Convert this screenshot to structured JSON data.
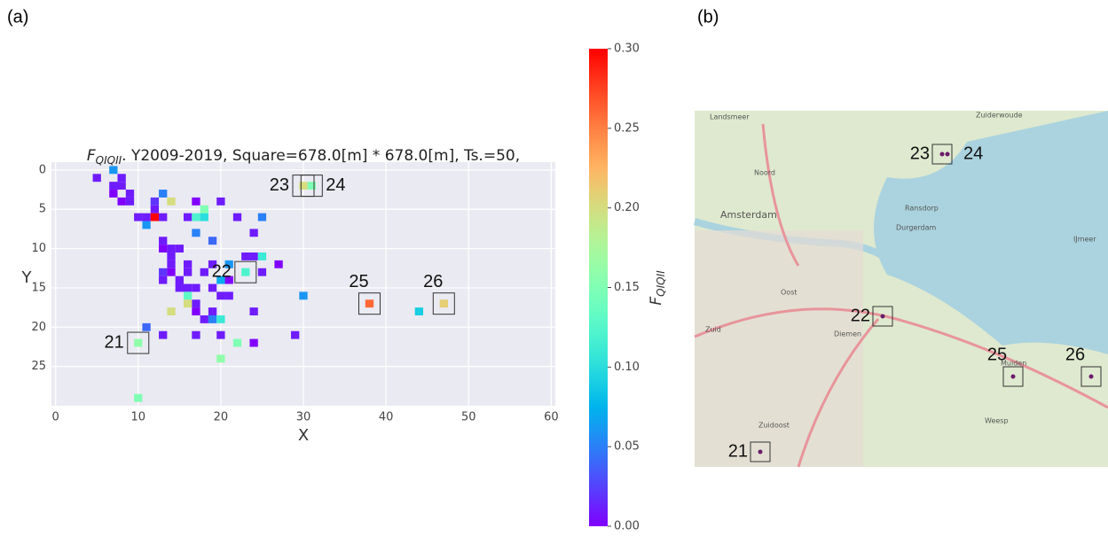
{
  "panels": {
    "a": "(a)",
    "b": "(b)"
  },
  "chart_data": {
    "type": "heatmap",
    "title_symbol": "F",
    "title_subscript": "QIQII",
    "title_rest": ". Y2009-2019, Square=678.0[m] * 678.0[m], Ts.=50,",
    "x_label": "X",
    "y_label": "Y",
    "xlim": [
      -0.5,
      60.5
    ],
    "ylim": [
      30,
      -1
    ],
    "grid": true,
    "xticks": [
      0,
      10,
      20,
      30,
      40,
      50,
      60
    ],
    "yticks": [
      0,
      5,
      10,
      15,
      20,
      25
    ],
    "colormap": "rainbow",
    "x": [
      5,
      7,
      7,
      8,
      8,
      8,
      9,
      12,
      13,
      11,
      10,
      12,
      17,
      16,
      22,
      20,
      9,
      13,
      13,
      14,
      15,
      14,
      14,
      13,
      13,
      14,
      15,
      16,
      17,
      16,
      16,
      17,
      17,
      18,
      19,
      20,
      21,
      20,
      17,
      13,
      24,
      23,
      24,
      27,
      25,
      21,
      24,
      24,
      29,
      19,
      15,
      18,
      19,
      7,
      13,
      11,
      17,
      19,
      25,
      11,
      20,
      30,
      19,
      21,
      18,
      17,
      44,
      23,
      25,
      16,
      20,
      10,
      18,
      22,
      20,
      10,
      31,
      14,
      14,
      30,
      47,
      16,
      38,
      12
    ],
    "y": [
      1,
      2,
      3,
      1,
      2,
      4,
      4,
      4,
      6,
      6,
      6,
      5,
      4,
      6,
      6,
      4,
      3,
      9,
      10,
      10,
      10,
      11,
      12,
      13,
      14,
      13,
      15,
      15,
      15,
      12,
      13,
      18,
      17,
      19,
      18,
      16,
      14,
      21,
      21,
      21,
      8,
      11,
      11,
      12,
      13,
      16,
      18,
      22,
      21,
      15,
      14,
      13,
      12,
      0,
      3,
      7,
      8,
      9,
      6,
      20,
      14,
      16,
      19,
      12,
      6,
      6,
      18,
      13,
      11,
      16,
      19,
      22,
      5,
      22,
      24,
      29,
      2,
      4,
      18,
      2,
      17,
      17,
      17,
      6
    ],
    "values": [
      0.01,
      0.01,
      0.0,
      0.01,
      0.01,
      0.0,
      0.01,
      0.02,
      0.01,
      0.01,
      0.01,
      0.01,
      0.0,
      0.01,
      0.01,
      0.01,
      0.01,
      0.01,
      0.0,
      0.01,
      0.01,
      0.01,
      0.01,
      0.02,
      0.01,
      0.0,
      0.01,
      0.01,
      0.01,
      0.01,
      0.01,
      0.0,
      0.01,
      0.01,
      0.01,
      0.01,
      0.0,
      0.01,
      0.01,
      0.01,
      0.01,
      0.01,
      0.01,
      0.0,
      0.01,
      0.01,
      0.01,
      0.0,
      0.01,
      0.01,
      0.01,
      0.01,
      0.01,
      0.06,
      0.05,
      0.06,
      0.05,
      0.04,
      0.05,
      0.04,
      0.07,
      0.06,
      0.05,
      0.06,
      0.1,
      0.12,
      0.09,
      0.12,
      0.11,
      0.13,
      0.11,
      0.16,
      0.15,
      0.15,
      0.16,
      0.15,
      0.15,
      0.2,
      0.2,
      0.2,
      0.21,
      0.2,
      0.26,
      0.3
    ],
    "annotations": [
      {
        "label": "21",
        "x": 10,
        "y": 22,
        "side": "left"
      },
      {
        "label": "22",
        "x": 23,
        "y": 13,
        "side": "left"
      },
      {
        "label": "23",
        "x": 30,
        "y": 2,
        "side": "left"
      },
      {
        "label": "24",
        "x": 31,
        "y": 2,
        "side": "right"
      },
      {
        "label": "25",
        "x": 38,
        "y": 17,
        "side": "top"
      },
      {
        "label": "26",
        "x": 47,
        "y": 17,
        "side": "top"
      }
    ],
    "colorbar": {
      "symbol": "F",
      "subscript": "QIQII",
      "lim": [
        0,
        0.3
      ],
      "ticks": [
        {
          "value": 0,
          "label": "0.00"
        },
        {
          "value": 0.05,
          "label": "0.05"
        },
        {
          "value": 0.1,
          "label": "0.10"
        },
        {
          "value": 0.15,
          "label": "0.15"
        },
        {
          "value": 0.2,
          "label": "0.20"
        },
        {
          "value": 0.25,
          "label": "0.25"
        },
        {
          "value": 0.3,
          "label": "0.30"
        }
      ]
    }
  },
  "map": {
    "places": [
      "Landsmeer",
      "Zuiderwoude",
      "Noord",
      "Amsterdam",
      "Oost",
      "Diemen",
      "Zuid",
      "Zuidoost",
      "Weesp",
      "Muiden",
      "IJmeer",
      "Durgerdam",
      "Ransdorp"
    ],
    "markers": [
      "21",
      "22",
      "23",
      "24",
      "25",
      "26"
    ]
  }
}
